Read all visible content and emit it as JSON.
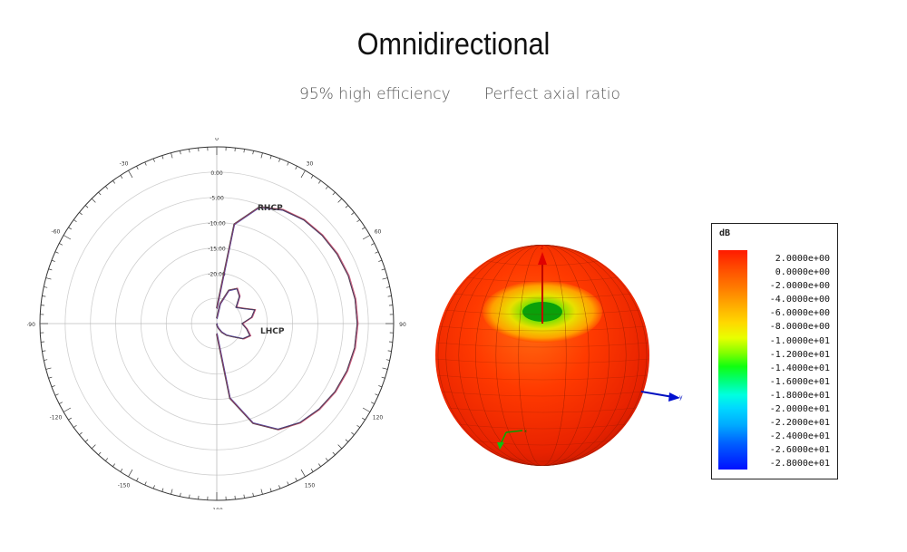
{
  "header": {
    "title": "Omnidirectional",
    "subtitle_left": "95% high efficiency",
    "subtitle_right": "Perfect axial ratio"
  },
  "chart_data": [
    {
      "type": "polar",
      "angle_labels": [
        "0",
        "30",
        "60",
        "90",
        "120",
        "150",
        "-180",
        "-150",
        "-120",
        "-90",
        "-60",
        "-30"
      ],
      "radial_labels": [
        "0.00",
        "-5.00",
        "-10.00",
        "-15.00",
        "-20.00"
      ],
      "rlim": [
        -30,
        5
      ],
      "grid": true,
      "series": [
        {
          "name": "RHCP",
          "color": "#8b2a4a",
          "theta_deg": [
            0,
            10,
            20,
            30,
            40,
            50,
            60,
            70,
            80,
            90,
            100,
            110,
            120,
            130,
            140,
            150,
            160,
            170,
            180
          ],
          "r_db": [
            -27,
            -10,
            -5.5,
            -4,
            -3.2,
            -2.8,
            -2.5,
            -2.3,
            -2.2,
            -2.2,
            -2.3,
            -2.6,
            -3,
            -3.6,
            -4.4,
            -5.8,
            -9,
            -15,
            -28
          ]
        },
        {
          "name": "LHCP",
          "color": "#6a3a6a",
          "theta_deg": [
            0,
            10,
            20,
            30,
            40,
            50,
            60,
            70,
            80,
            90,
            100,
            110,
            120,
            130,
            140,
            150,
            160,
            170,
            180
          ],
          "r_db": [
            -29,
            -26,
            -23,
            -22,
            -23,
            -25,
            -24,
            -22,
            -23,
            -25,
            -24,
            -23,
            -24,
            -26,
            -27,
            -28,
            -29,
            -29.5,
            -30
          ]
        }
      ]
    },
    {
      "type": "3d-radiation-pattern",
      "axis_labels": [
        "z",
        "y",
        "x"
      ]
    }
  ],
  "colorbar": {
    "unit": "dB",
    "labels": [
      "2.0000e+00",
      "0.0000e+00",
      "-2.0000e+00",
      "-4.0000e+00",
      "-6.0000e+00",
      "-8.0000e+00",
      "-1.0000e+01",
      "-1.2000e+01",
      "-1.4000e+01",
      "-1.6000e+01",
      "-1.8000e+01",
      "-2.0000e+01",
      "-2.2000e+01",
      "-2.4000e+01",
      "-2.6000e+01",
      "-2.8000e+01"
    ]
  }
}
